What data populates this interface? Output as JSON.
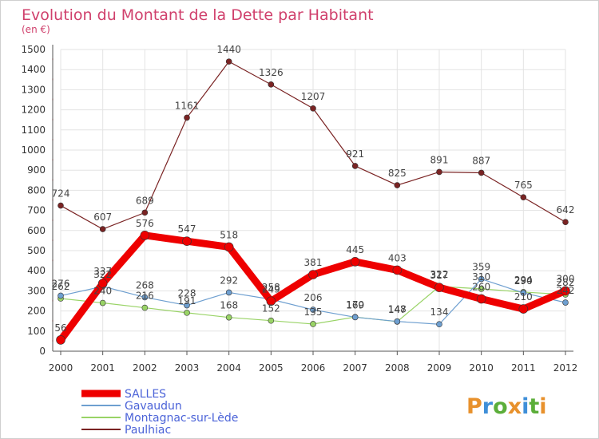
{
  "chart_data": {
    "type": "line",
    "title": "Evolution du Montant de la Dette par Habitant",
    "subtitle": "(en €)",
    "categories": [
      "2000",
      "2001",
      "2002",
      "2003",
      "2004",
      "2005",
      "2006",
      "2007",
      "2008",
      "2009",
      "2010",
      "2011",
      "2012"
    ],
    "y_ticks": [
      "0",
      "100",
      "200",
      "300",
      "400",
      "500",
      "600",
      "700",
      "800",
      "900",
      "1000",
      "1100",
      "1200",
      "1300",
      "1400",
      "1500"
    ],
    "ylim": [
      0,
      1500
    ],
    "grid": true,
    "legend_position": "bottom-left",
    "series": [
      {
        "name": "Paulhiac",
        "color": "#7a2323",
        "width": 1.2,
        "values": [
          724,
          607,
          689,
          1161,
          1440,
          1326,
          1207,
          921,
          825,
          891,
          887,
          765,
          642
        ]
      },
      {
        "name": "Montagnac-sur-Lède",
        "color": "#99d366",
        "width": 1.2,
        "values": [
          262,
          240,
          216,
          191,
          168,
          152,
          135,
          170,
          147,
          322,
          310,
          294,
          282
        ]
      },
      {
        "name": "Gavaudun",
        "color": "#6e9fd0",
        "width": 1.2,
        "values": [
          276,
          322,
          268,
          228,
          292,
          258,
          206,
          169,
          148,
          134,
          359,
          290,
          242
        ]
      },
      {
        "name": "SALLES",
        "color": "#ee0000",
        "width": 9,
        "values": [
          56,
          337,
          576,
          547,
          518,
          249,
          381,
          445,
          403,
          317,
          260,
          210,
          300
        ]
      }
    ],
    "legend": [
      "SALLES",
      "Gavaudun",
      "Montagnac-sur-Lède",
      "Paulhiac"
    ]
  },
  "logo": {
    "text": "Proxiti"
  }
}
